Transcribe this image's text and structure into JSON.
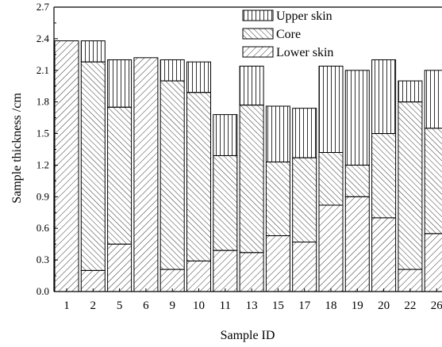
{
  "chart_data": {
    "type": "bar",
    "stacked": true,
    "xlabel": "Sample ID",
    "ylabel": "Sample thickness /cm",
    "ylim": [
      0,
      2.7
    ],
    "yticks": [
      "0.0",
      "0.3",
      "0.6",
      "0.9",
      "1.2",
      "1.5",
      "1.8",
      "2.1",
      "2.4",
      "2.7"
    ],
    "categories": [
      "1",
      "2",
      "5",
      "6",
      "9",
      "10",
      "11",
      "13",
      "15",
      "17",
      "18",
      "19",
      "20",
      "22",
      "26"
    ],
    "series": [
      {
        "name": "Lower skin",
        "pattern": "diagonal-forward",
        "values": [
          2.38,
          0.2,
          0.45,
          2.22,
          0.21,
          0.29,
          0.39,
          0.37,
          0.53,
          0.47,
          0.82,
          0.9,
          0.7,
          0.21,
          0.55
        ]
      },
      {
        "name": "Core",
        "pattern": "diagonal-backward",
        "values": [
          0.0,
          1.98,
          1.3,
          0.0,
          1.79,
          1.6,
          0.9,
          1.4,
          0.7,
          0.8,
          0.5,
          0.3,
          0.8,
          1.59,
          1.0
        ]
      },
      {
        "name": "Upper skin",
        "pattern": "vertical",
        "values": [
          0.0,
          0.2,
          0.45,
          0.0,
          0.2,
          0.29,
          0.39,
          0.37,
          0.53,
          0.47,
          0.82,
          0.9,
          0.7,
          0.2,
          0.55
        ]
      }
    ],
    "legend": {
      "position": "top-right",
      "order": [
        "Upper skin",
        "Core",
        "Lower skin"
      ]
    },
    "grid": false
  }
}
